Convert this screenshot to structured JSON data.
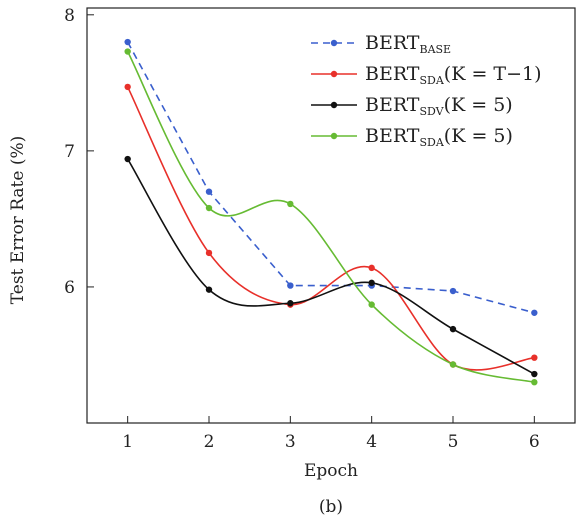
{
  "chart_data": {
    "type": "line",
    "title": "",
    "caption": "(b)",
    "xlabel": "Epoch",
    "ylabel": "Test Error Rate (%)",
    "x": [
      1,
      2,
      3,
      4,
      5,
      6
    ],
    "xlim": [
      0.5,
      6.5
    ],
    "ylim": [
      5.0,
      8.05
    ],
    "xticks": [
      "1",
      "2",
      "3",
      "4",
      "5",
      "6"
    ],
    "yticks": [
      "6",
      "7",
      "8"
    ],
    "grid": false,
    "legend_position": "top-right",
    "series": [
      {
        "name": "BERT_BASE",
        "legend_main": "BERT",
        "legend_sub": "BASE",
        "legend_suffix": "",
        "color": "#3a5fcd",
        "dashed": true,
        "smooth": false,
        "values": [
          7.8,
          6.7,
          6.01,
          6.01,
          5.97,
          5.81
        ]
      },
      {
        "name": "BERT_SDA(K=T−1)",
        "legend_main": "BERT",
        "legend_sub": "SDA",
        "legend_suffix": "(K = T−1)",
        "color": "#e8302a",
        "dashed": false,
        "smooth": true,
        "values": [
          7.47,
          6.25,
          5.87,
          6.14,
          5.43,
          5.48
        ]
      },
      {
        "name": "BERT_SDV(K=5)",
        "legend_main": "BERT",
        "legend_sub": "SDV",
        "legend_suffix": "(K = 5)",
        "color": "#111111",
        "dashed": false,
        "smooth": true,
        "values": [
          6.94,
          5.98,
          5.88,
          6.03,
          5.69,
          5.36
        ]
      },
      {
        "name": "BERT_SDA(K=5)",
        "legend_main": "BERT",
        "legend_sub": "SDA",
        "legend_suffix": "(K = 5)",
        "color": "#66bb33",
        "dashed": false,
        "smooth": true,
        "values": [
          7.73,
          6.58,
          6.61,
          5.87,
          5.43,
          5.3
        ]
      }
    ]
  }
}
